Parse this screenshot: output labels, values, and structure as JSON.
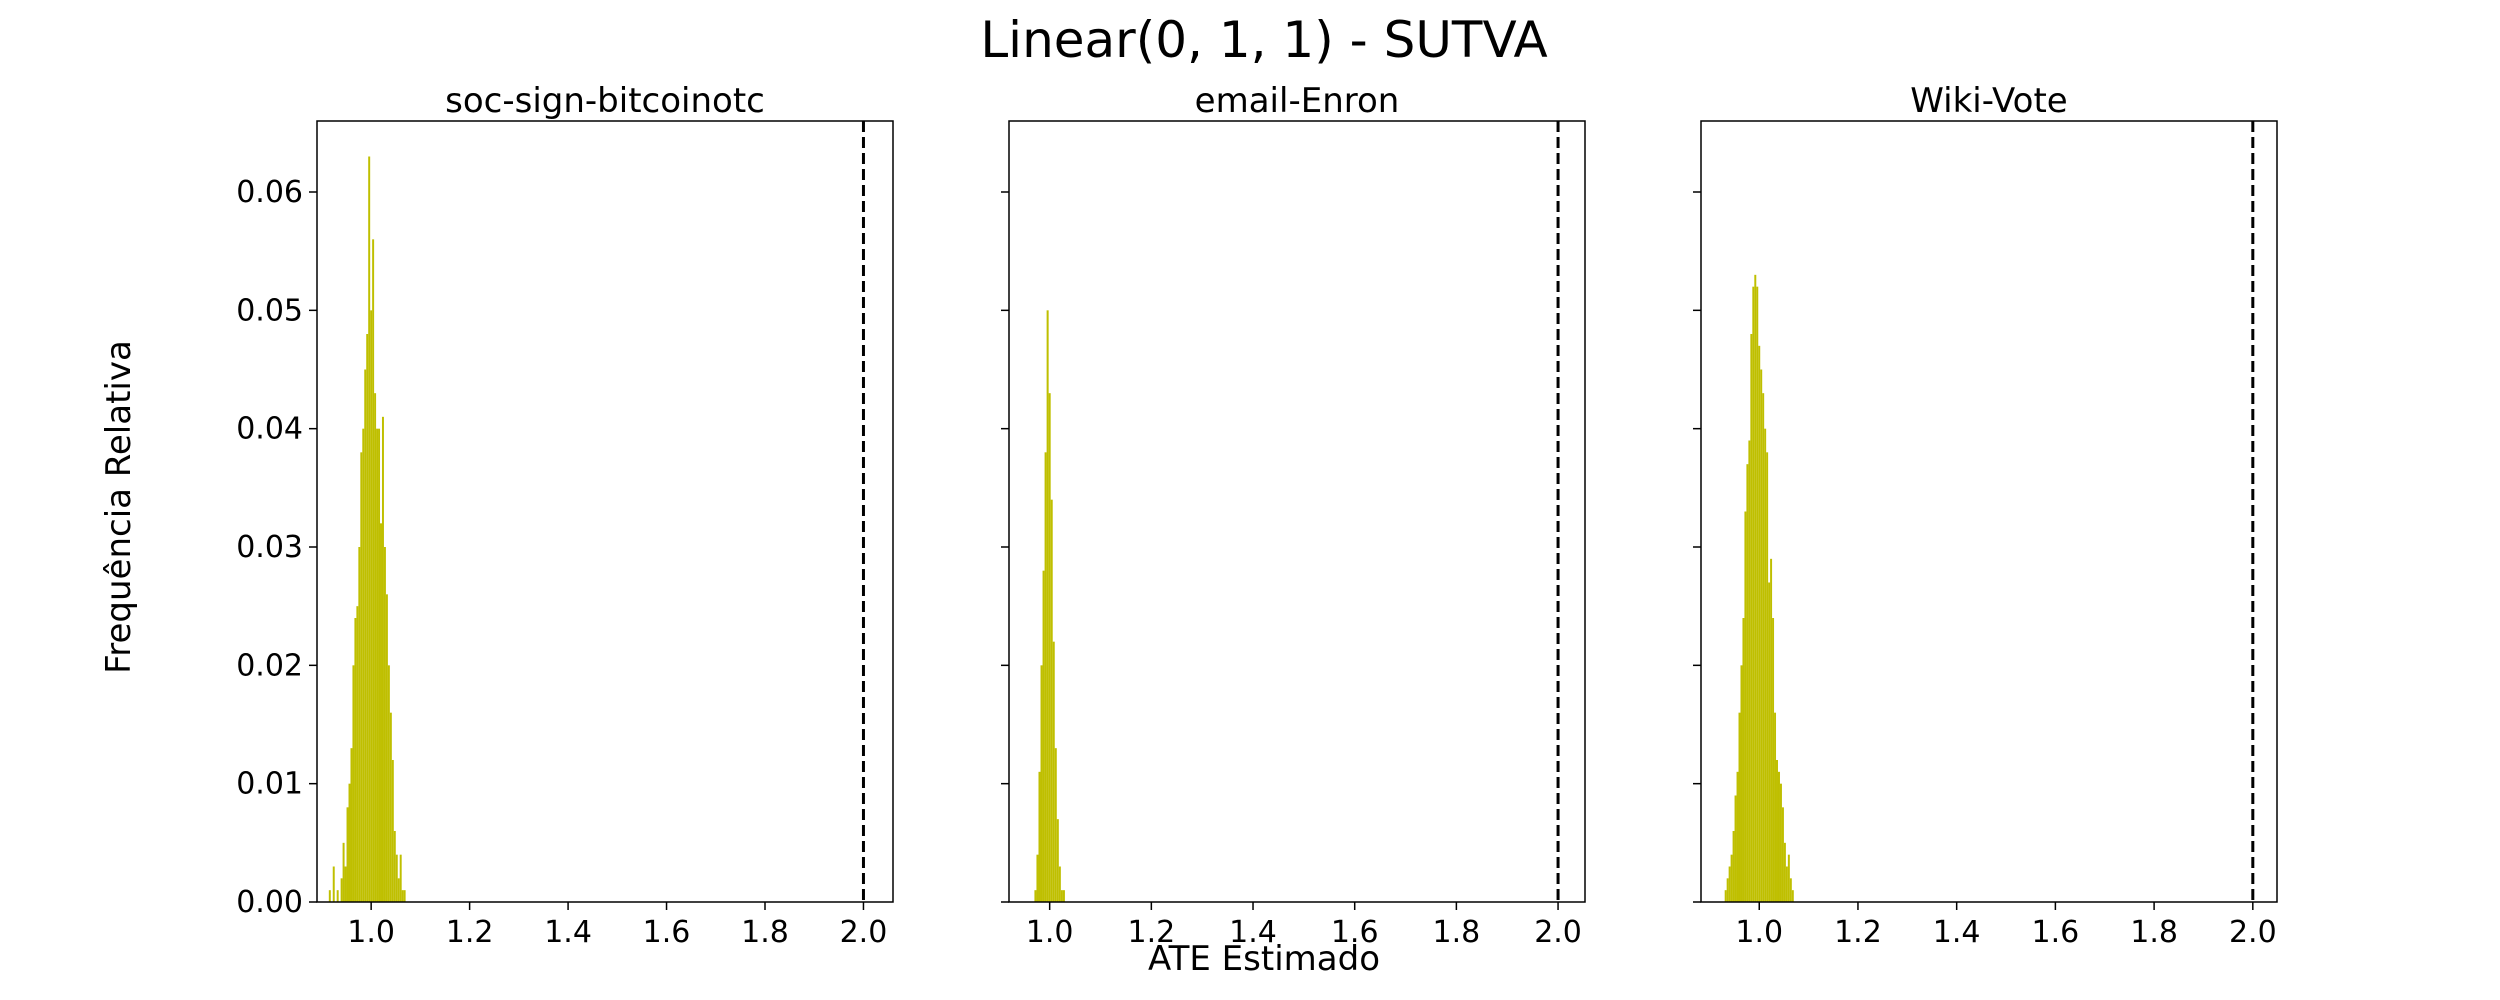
{
  "figure": {
    "title": "Linear(0, 1, 1) - SUTVA",
    "xlabel": "ATE Estimado",
    "ylabel": "Frequência Relativa"
  },
  "colors": {
    "bars": "#bfbf00",
    "reference_line": "#000000",
    "axes": "#000000"
  },
  "chart_data": [
    {
      "type": "bar",
      "title": "soc-sign-bitcoinotc",
      "xlim": [
        0.89,
        2.06
      ],
      "ylim": [
        0,
        0.066
      ],
      "x_ticks": [
        "1.0",
        "1.2",
        "1.4",
        "1.6",
        "1.8",
        "2.0"
      ],
      "y_ticks": [
        "0.00",
        "0.01",
        "0.02",
        "0.03",
        "0.04",
        "0.05",
        "0.06"
      ],
      "reference_line_x": 2.0,
      "bin_width": 0.004,
      "x": [
        0.916,
        0.924,
        0.932,
        0.94,
        0.944,
        0.948,
        0.952,
        0.956,
        0.96,
        0.964,
        0.968,
        0.972,
        0.976,
        0.98,
        0.984,
        0.988,
        0.992,
        0.996,
        1.0,
        1.004,
        1.008,
        1.012,
        1.016,
        1.02,
        1.024,
        1.028,
        1.032,
        1.036,
        1.04,
        1.044,
        1.048,
        1.052,
        1.056,
        1.06,
        1.064,
        1.068
      ],
      "values": [
        0.001,
        0.003,
        0.001,
        0.002,
        0.005,
        0.003,
        0.008,
        0.01,
        0.013,
        0.02,
        0.024,
        0.025,
        0.03,
        0.038,
        0.04,
        0.045,
        0.048,
        0.063,
        0.05,
        0.056,
        0.043,
        0.04,
        0.04,
        0.032,
        0.041,
        0.03,
        0.026,
        0.02,
        0.016,
        0.012,
        0.006,
        0.004,
        0.002,
        0.004,
        0.001,
        0.001
      ]
    },
    {
      "type": "bar",
      "title": "email-Enron",
      "xlim": [
        0.92,
        2.053
      ],
      "ylim": [
        0,
        0.066
      ],
      "x_ticks": [
        "1.0",
        "1.2",
        "1.4",
        "1.6",
        "1.8",
        "2.0"
      ],
      "y_ticks": [],
      "reference_line_x": 2.0,
      "bin_width": 0.004,
      "x": [
        0.972,
        0.976,
        0.98,
        0.984,
        0.988,
        0.992,
        0.996,
        1.0,
        1.004,
        1.008,
        1.012,
        1.016,
        1.02,
        1.024,
        1.028
      ],
      "values": [
        0.001,
        0.004,
        0.011,
        0.02,
        0.028,
        0.038,
        0.05,
        0.043,
        0.034,
        0.022,
        0.013,
        0.007,
        0.003,
        0.001,
        0.001
      ]
    },
    {
      "type": "bar",
      "title": "Wiki-Vote",
      "xlim": [
        0.882,
        2.049
      ],
      "ylim": [
        0,
        0.066
      ],
      "x_ticks": [
        "1.0",
        "1.2",
        "1.4",
        "1.6",
        "1.8",
        "2.0"
      ],
      "y_ticks": [],
      "reference_line_x": 2.0,
      "bin_width": 0.004,
      "x": [
        0.932,
        0.936,
        0.94,
        0.944,
        0.948,
        0.952,
        0.956,
        0.96,
        0.964,
        0.968,
        0.972,
        0.976,
        0.98,
        0.984,
        0.988,
        0.992,
        0.996,
        1.0,
        1.004,
        1.008,
        1.012,
        1.016,
        1.02,
        1.024,
        1.028,
        1.032,
        1.036,
        1.04,
        1.044,
        1.048,
        1.052,
        1.056,
        1.06,
        1.064,
        1.068
      ],
      "values": [
        0.001,
        0.002,
        0.003,
        0.004,
        0.006,
        0.009,
        0.011,
        0.016,
        0.02,
        0.024,
        0.033,
        0.037,
        0.039,
        0.048,
        0.052,
        0.053,
        0.052,
        0.047,
        0.045,
        0.043,
        0.04,
        0.038,
        0.027,
        0.029,
        0.024,
        0.016,
        0.012,
        0.011,
        0.01,
        0.008,
        0.005,
        0.003,
        0.004,
        0.002,
        0.001
      ]
    }
  ]
}
